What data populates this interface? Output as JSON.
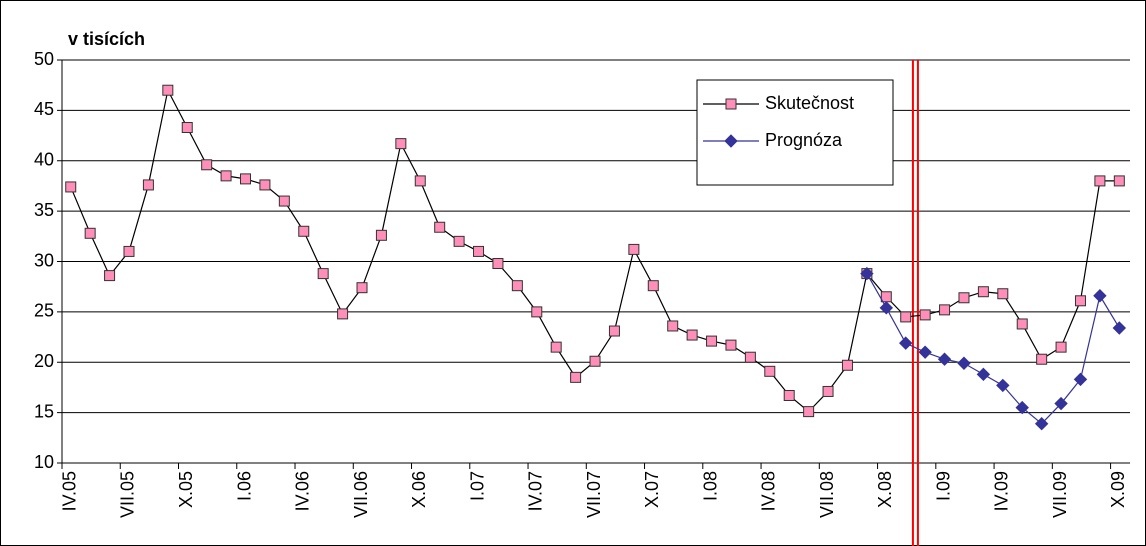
{
  "chart_data": {
    "type": "line",
    "title": "v tisících",
    "categories": [
      "IV.05",
      null,
      null,
      "VII.05",
      null,
      null,
      "X.05",
      null,
      null,
      "I.06",
      null,
      null,
      "IV.06",
      null,
      null,
      "VII.06",
      null,
      null,
      "X.06",
      null,
      null,
      "I.07",
      null,
      null,
      "IV.07",
      null,
      null,
      "VII.07",
      null,
      null,
      "X.07",
      null,
      null,
      "I.08",
      null,
      null,
      "IV.08",
      null,
      null,
      "VII.08",
      null,
      null,
      "X.08",
      null,
      null,
      "I.09",
      null,
      null,
      "IV.09",
      null,
      null,
      "VII.09",
      null,
      null,
      "X.09"
    ],
    "series": [
      {
        "name": "Skutečnost",
        "color": "#000000",
        "marker_color": "#ff8fb8",
        "marker": "square",
        "values": [
          37.4,
          32.8,
          28.6,
          31.0,
          37.6,
          47.0,
          43.3,
          39.6,
          38.5,
          38.2,
          37.6,
          36.0,
          33.0,
          28.8,
          24.8,
          27.4,
          32.6,
          41.7,
          38.0,
          33.4,
          32.0,
          31.0,
          29.8,
          27.6,
          25.0,
          21.5,
          18.5,
          20.1,
          23.1,
          31.2,
          27.6,
          23.6,
          22.7,
          22.1,
          21.7,
          20.5,
          19.1,
          16.7,
          15.1,
          17.1,
          19.7,
          28.8,
          26.5,
          24.5,
          24.7,
          25.2,
          26.4,
          27.0,
          26.8,
          23.8,
          20.3,
          21.5,
          26.1,
          38.0,
          38.0
        ]
      },
      {
        "name": "Prognóza",
        "color": "#333399",
        "marker_color": "#333399",
        "marker": "diamond",
        "values": [
          null,
          null,
          null,
          null,
          null,
          null,
          null,
          null,
          null,
          null,
          null,
          null,
          null,
          null,
          null,
          null,
          null,
          null,
          null,
          null,
          null,
          null,
          null,
          null,
          null,
          null,
          null,
          null,
          null,
          null,
          null,
          null,
          null,
          null,
          null,
          null,
          null,
          null,
          null,
          null,
          null,
          28.8,
          25.4,
          21.9,
          21.0,
          20.3,
          19.9,
          18.8,
          17.7,
          15.5,
          13.9,
          15.9,
          18.3,
          26.6,
          23.4
        ]
      }
    ],
    "ylim": [
      10,
      50
    ],
    "yticks": [
      10,
      15,
      20,
      25,
      30,
      35,
      40,
      45,
      50
    ],
    "grid": true
  }
}
